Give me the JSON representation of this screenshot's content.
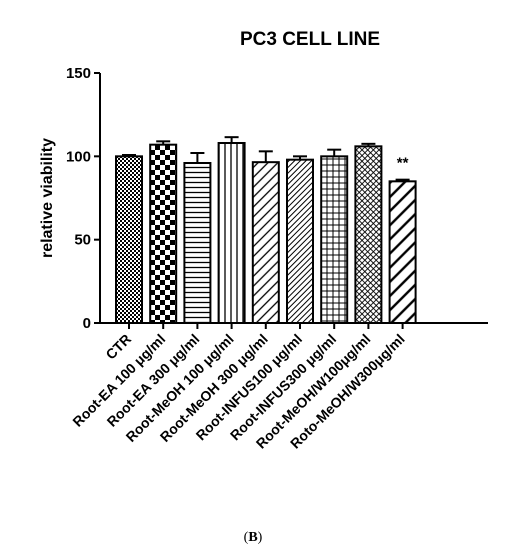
{
  "chart_data": {
    "type": "bar",
    "title": "PC3 CELL LINE",
    "ylabel": "relative viability",
    "xlabel": "",
    "ylim": [
      0,
      150
    ],
    "yticks": [
      0,
      50,
      100,
      150
    ],
    "grid": false,
    "categories": [
      "CTR",
      "Root-EA 100 μg/ml",
      "Root-EA 300 μg/ml",
      "Root-MeOH 100 μg/ml",
      "Root-MeOH 300 μg/ml",
      "Root-INFUS100 μg/ml",
      "Root-INFUS300 μg/ml",
      "Root-MeOH/W100μg/ml",
      "Roto-MeOH/W300μg/ml"
    ],
    "values": [
      100,
      107,
      96,
      108,
      96.5,
      98,
      100,
      106,
      85
    ],
    "errors": [
      0.8,
      2,
      6,
      3.5,
      6.5,
      2,
      4,
      1.5,
      1
    ],
    "patterns": [
      "checker-fine",
      "checker-coarse",
      "horizontal-lines",
      "vertical-lines",
      "diagonal-lines",
      "diagonal-dense",
      "grid",
      "crosshatch-fine",
      "diagonal-wide"
    ],
    "annotations": [
      {
        "category_index": 8,
        "text": "**"
      }
    ]
  },
  "panel_label": {
    "open": "(",
    "letter": "B",
    "close": ")"
  }
}
